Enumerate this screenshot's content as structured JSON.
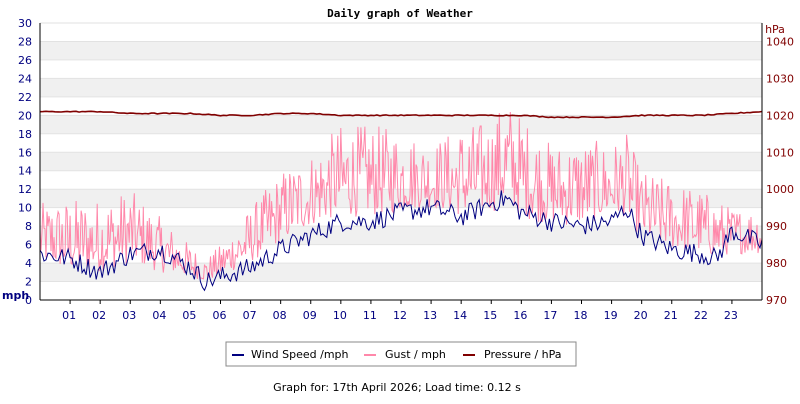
{
  "chart_data": {
    "type": "line",
    "title": "Daily graph of Weather",
    "y_left": {
      "unit": "mph",
      "ylim": [
        0,
        30
      ],
      "ticks": [
        0,
        2,
        4,
        6,
        8,
        10,
        12,
        14,
        16,
        18,
        20,
        22,
        24,
        26,
        28,
        30
      ]
    },
    "y_right": {
      "unit": "hPa",
      "ylim": [
        970,
        1045
      ],
      "ticks": [
        970,
        980,
        990,
        1000,
        1010,
        1020,
        1030,
        1040
      ]
    },
    "x": {
      "labels": [
        "01",
        "02",
        "03",
        "04",
        "05",
        "06",
        "07",
        "08",
        "09",
        "10",
        "11",
        "12",
        "13",
        "14",
        "15",
        "16",
        "17",
        "18",
        "19",
        "20",
        "21",
        "22",
        "23"
      ],
      "range_hours": [
        0,
        24
      ]
    },
    "grid": "horizontal bands",
    "legend_position": "bottom",
    "series": [
      {
        "name": "Wind Speed /mph",
        "axis": "left",
        "color": "#000080",
        "x_hours": [
          0,
          1,
          2,
          3,
          4,
          5,
          5.5,
          6,
          7,
          8,
          9,
          10,
          11,
          12,
          13,
          14,
          15,
          15.5,
          16,
          17,
          18,
          19,
          19.5,
          20,
          21,
          22,
          22.5,
          23,
          24
        ],
        "values": [
          5,
          4.5,
          3,
          5,
          5.5,
          3.5,
          2,
          2.5,
          3.5,
          5.5,
          7,
          8.5,
          8.5,
          9.5,
          10,
          9,
          10.5,
          11,
          9.5,
          8.5,
          8,
          8.5,
          10,
          7,
          5.5,
          5,
          4.5,
          7.5,
          6
        ]
      },
      {
        "name": "Gust / mph",
        "axis": "left",
        "color": "#ff88aa",
        "x_hours": [
          0,
          1,
          2,
          3,
          4,
          5,
          5.5,
          6,
          7,
          8,
          9,
          10,
          11,
          12,
          13,
          14,
          15,
          15.5,
          16,
          17,
          18,
          19,
          19.5,
          20,
          21,
          22,
          22.5,
          23,
          24
        ],
        "low": [
          4,
          3,
          3,
          4,
          3,
          2.5,
          2,
          2.5,
          4,
          6,
          8,
          9,
          9,
          9.5,
          10,
          9,
          9.5,
          10,
          9,
          8,
          8,
          9,
          9,
          6.5,
          5.5,
          5,
          4.5,
          5,
          5
        ],
        "high": [
          10.5,
          11,
          11,
          12,
          9,
          6,
          4.5,
          6,
          10,
          14,
          16,
          19,
          19,
          18.5,
          17,
          19,
          19.5,
          22,
          20,
          17,
          17.5,
          17,
          18,
          14,
          13,
          12,
          11,
          10,
          10
        ]
      },
      {
        "name": "Pressure / hPa",
        "axis": "right",
        "color": "#800000",
        "x_hours": [
          0,
          1,
          2,
          3,
          4,
          5,
          6,
          7,
          8,
          9,
          10,
          11,
          12,
          13,
          14,
          15,
          16,
          17,
          18,
          19,
          20,
          21,
          22,
          23,
          24
        ],
        "values": [
          1021,
          1021,
          1021,
          1020.5,
          1020.5,
          1020.5,
          1020,
          1020,
          1020.5,
          1020.5,
          1020,
          1020,
          1020,
          1020,
          1020,
          1020,
          1020,
          1019.5,
          1019.5,
          1019.5,
          1020,
          1020,
          1020,
          1020.5,
          1021
        ]
      }
    ]
  },
  "footer": {
    "text": "Graph for: 17th April 2026; Load time: 0.12 s"
  }
}
